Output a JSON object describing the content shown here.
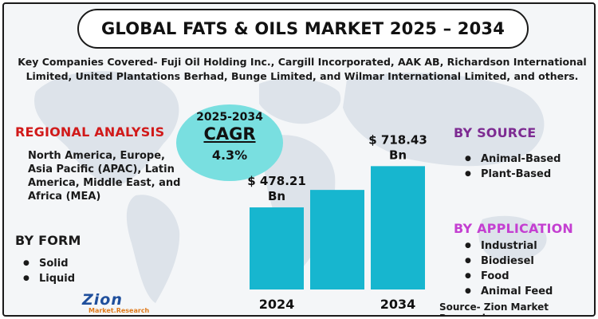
{
  "title": "GLOBAL FATS & OILS MARKET 2025 – 2034",
  "companies_text": "Key Companies Covered- Fuji Oil Holding Inc., Cargill Incorporated, AAK AB, Richardson International Limited, United Plantations Berhad, Bunge Limited, and Wilmar International Limited, and others.",
  "regional": {
    "title": "REGIONAL ANALYSIS",
    "text": "North America, Europe, Asia Pacific (APAC), Latin America, Middle East, and Africa (MEA)"
  },
  "by_form": {
    "title": "BY FORM",
    "items": [
      "Solid",
      "Liquid"
    ]
  },
  "by_source": {
    "title": "BY SOURCE",
    "items": [
      "Animal-Based",
      "Plant-Based"
    ]
  },
  "by_application": {
    "title": "BY APPLICATION",
    "items": [
      "Industrial",
      "Biodiesel",
      "Food",
      "Animal Feed"
    ]
  },
  "cagr": {
    "years": "2025-2034",
    "label": "CAGR",
    "value": "4.3%"
  },
  "logo": {
    "main": "Zion",
    "sub": "Market.Research"
  },
  "source_text": "Source- Zion Market Research",
  "colors": {
    "bar": "#17b6cf",
    "cagr_circle": "#79dfe0",
    "regional_title": "#d11a1a",
    "source_title": "#7d2b92",
    "application_title": "#c43fd1"
  },
  "chart_data": {
    "type": "bar",
    "categories": [
      "2024",
      "",
      "2034"
    ],
    "values": [
      478.21,
      580,
      718.43
    ],
    "data_labels": [
      "$ 478.21 Bn",
      "",
      "$ 718.43 Bn"
    ],
    "ylim": [
      0,
      720
    ]
  }
}
